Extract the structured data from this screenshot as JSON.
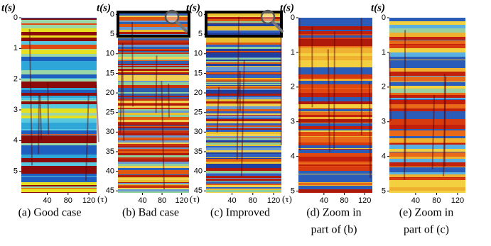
{
  "panels": [
    {
      "y_label": "t(s)",
      "x_label": "(τ)",
      "yticks": [
        0,
        1,
        2,
        3,
        4,
        5
      ],
      "ylim": [
        0,
        5.7
      ],
      "xticks": [
        40,
        80,
        120
      ],
      "xlim": [
        -10,
        135
      ],
      "caption": [
        "(a) Good case"
      ]
    },
    {
      "y_label": "t(s)",
      "x_label": "(τ)",
      "yticks": [
        0,
        5,
        10,
        15,
        20,
        25,
        30,
        35,
        40,
        45
      ],
      "ylim": [
        -1,
        45.5
      ],
      "xticks": [
        40,
        80,
        120
      ],
      "xlim": [
        -10,
        135
      ],
      "caption": [
        "(b) Bad case"
      ]
    },
    {
      "y_label": "t(s)",
      "x_label": "(τ)",
      "yticks": [
        0,
        5,
        10,
        15,
        20,
        25,
        30,
        35,
        40,
        45
      ],
      "ylim": [
        -1,
        45.5
      ],
      "xticks": [
        40,
        80,
        120
      ],
      "xlim": [
        -10,
        135
      ],
      "caption": [
        "(c) Improved"
      ]
    },
    {
      "y_label": "t(s)",
      "yticks": [
        0,
        1,
        2,
        3,
        4,
        5
      ],
      "ylim": [
        0,
        5.05
      ],
      "xticks": [
        40,
        80,
        120
      ],
      "xlim": [
        -10,
        135
      ],
      "caption": [
        "(d) Zoom in",
        "part of (b)"
      ]
    },
    {
      "y_label": "t(s)",
      "yticks": [
        0,
        1,
        2,
        3,
        4,
        5
      ],
      "ylim": [
        0,
        5.05
      ],
      "xticks": [
        40,
        80,
        120
      ],
      "xlim": [
        -10,
        135
      ],
      "caption": [
        "(e) Zoom in",
        "part of (c)"
      ]
    }
  ]
}
